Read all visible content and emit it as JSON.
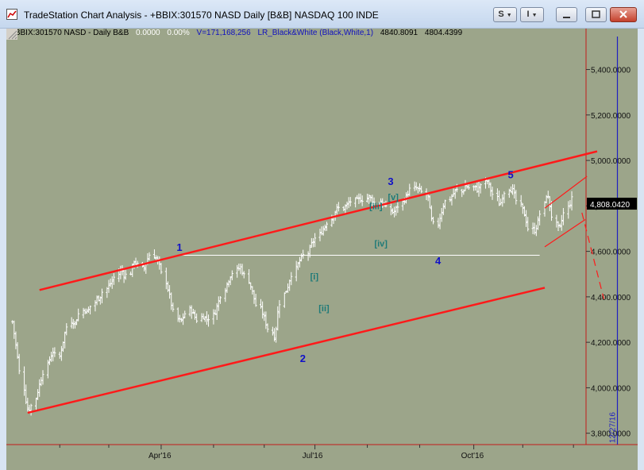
{
  "window": {
    "title": "TradeStation Chart Analysis - +BBIX:301570 NASD Daily [B&B] NASDAQ 100 INDE",
    "buttons": {
      "s_label": "S",
      "i_label": "I"
    },
    "controls": [
      "minimize",
      "maximize",
      "close"
    ]
  },
  "status_line": {
    "symbol": "+BBIX:301570 NASD - Daily  B&B",
    "change": "0.0000",
    "change_pct": "0.00%",
    "volume": "V=171,168,256",
    "indicator": "LR_Black&White (Black,White,1)",
    "value1": "4840.8091",
    "value2": "4804.4399"
  },
  "last_price_label": "4,808.0420",
  "date_marker_label": "12/27/16",
  "wave_labels": {
    "primary": [
      "1",
      "2",
      "3",
      "4",
      "5"
    ],
    "minor": [
      "[i]",
      "[ii]",
      "[iii]",
      "[iv]",
      "[v]"
    ]
  },
  "colors": {
    "chart_bg": "#9ca58a",
    "trendline": "#ff1a1a",
    "price_bars": "#ffffff",
    "wave_primary": "#1010c8",
    "wave_minor": "#1e7a78",
    "date_marker": "#2020c0"
  },
  "chart_data": {
    "type": "ohlc",
    "title": "",
    "x_tick_labels": [
      "Apr'16",
      "Jul'16",
      "Oct'16"
    ],
    "y_tick_labels": [
      "5,400.0000",
      "5,200.0000",
      "5,000.0000",
      "4,800.0000",
      "4,600.0000",
      "4,400.0000",
      "4,200.0000",
      "4,000.0000",
      "3,800.0000"
    ],
    "y_ticks": [
      5400,
      5200,
      5000,
      4800,
      4600,
      4400,
      4200,
      4000,
      3800
    ],
    "ylim": [
      3750,
      5580
    ],
    "closes": [
      4290,
      4200,
      4100,
      3970,
      3900,
      3920,
      3980,
      4030,
      4080,
      4130,
      4160,
      4130,
      4190,
      4250,
      4300,
      4280,
      4320,
      4350,
      4330,
      4360,
      4390,
      4400,
      4430,
      4450,
      4470,
      4500,
      4520,
      4490,
      4510,
      4560,
      4540,
      4520,
      4560,
      4590,
      4570,
      4540,
      4480,
      4420,
      4360,
      4300,
      4290,
      4320,
      4350,
      4320,
      4300,
      4320,
      4300,
      4310,
      4340,
      4380,
      4430,
      4470,
      4500,
      4520,
      4530,
      4500,
      4460,
      4410,
      4360,
      4330,
      4290,
      4250,
      4220,
      4340,
      4410,
      4440,
      4490,
      4530,
      4560,
      4580,
      4600,
      4640,
      4660,
      4690,
      4710,
      4740,
      4770,
      4790,
      4790,
      4800,
      4820,
      4820,
      4830,
      4830,
      4840,
      4830,
      4810,
      4820,
      4800,
      4780,
      4770,
      4790,
      4820,
      4840,
      4870,
      4880,
      4870,
      4860,
      4840,
      4740,
      4710,
      4760,
      4810,
      4830,
      4850,
      4870,
      4860,
      4890,
      4880,
      4880,
      4870,
      4900,
      4910,
      4870,
      4840,
      4800,
      4850,
      4880,
      4870,
      4830,
      4790,
      4760,
      4700,
      4690,
      4720,
      4780,
      4860,
      4800,
      4720,
      4690,
      4750,
      4800,
      4830
    ],
    "trendlines": [
      {
        "name": "upper-channel",
        "from": [
          "2016-01-20",
          4430
        ],
        "to": [
          "2016-12-15",
          5040
        ]
      },
      {
        "name": "lower-channel",
        "from": [
          "2016-01-13",
          3890
        ],
        "to": [
          "2016-11-14",
          4440
        ]
      },
      {
        "name": "wedge-upper",
        "from": [
          "2016-11-14",
          4790
        ],
        "to": [
          "2016-12-09",
          4930
        ]
      },
      {
        "name": "wedge-lower",
        "from": [
          "2016-11-14",
          4620
        ],
        "to": [
          "2016-12-08",
          4740
        ]
      },
      {
        "name": "projection",
        "from": [
          "2016-12-06",
          4770
        ],
        "to": [
          "2016-12-19",
          4390
        ],
        "dashed": true
      }
    ],
    "horizontal_lines": [
      {
        "name": "wave1-high",
        "value": 4583,
        "from": "2016-04-13",
        "to": "2016-11-11"
      }
    ],
    "last_price": 4808.042,
    "date_marker": "2016-12-27"
  }
}
